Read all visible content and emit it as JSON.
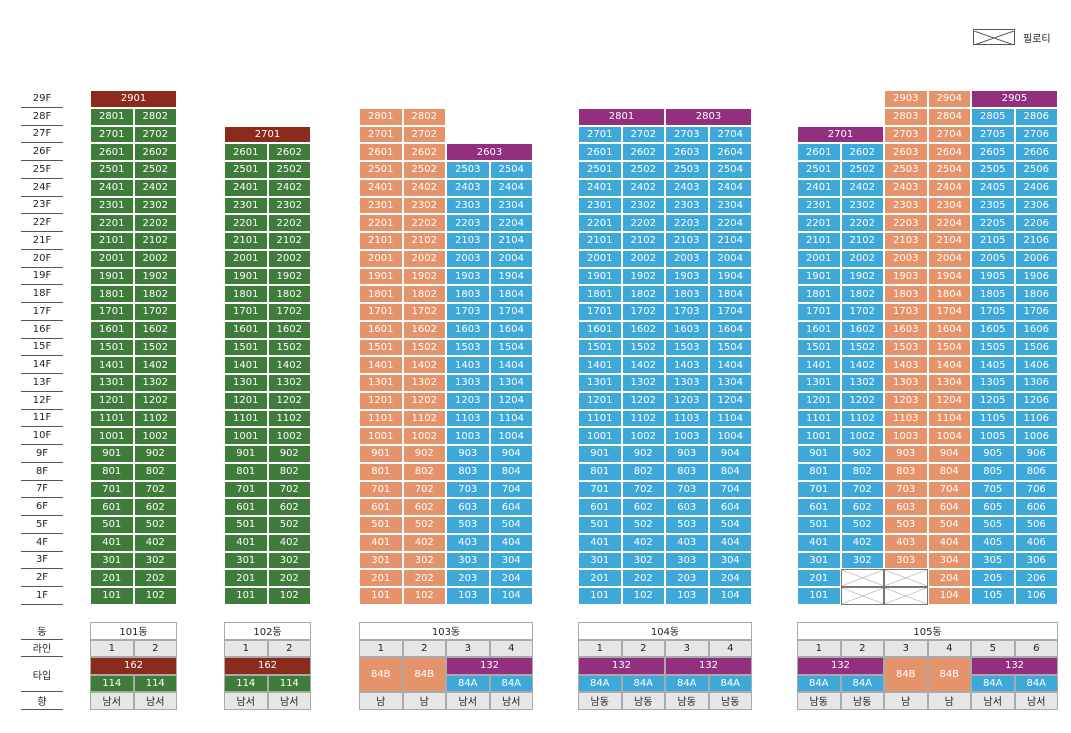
{
  "legend": {
    "label": "필로티"
  },
  "colors": {
    "dark_red": "#8b2b1c",
    "green": "#3f7c3a",
    "orange": "#e5936a",
    "blue": "#3ea9d8",
    "purple": "#922f7f",
    "gray_row": "#e6e6e6"
  },
  "floors": [
    "29F",
    "28F",
    "27F",
    "26F",
    "25F",
    "24F",
    "23F",
    "22F",
    "21F",
    "20F",
    "19F",
    "18F",
    "17F",
    "16F",
    "15F",
    "14F",
    "13F",
    "12F",
    "11F",
    "10F",
    "9F",
    "8F",
    "7F",
    "6F",
    "5F",
    "4F",
    "3F",
    "2F",
    "1F"
  ],
  "row_labels": {
    "dong": "동",
    "line": "라인",
    "type": "타입",
    "direction": "향"
  },
  "buildings": [
    {
      "name": "101동",
      "lines": [
        "1",
        "2"
      ],
      "top_floor": 29,
      "line_colors": [
        "green",
        "green"
      ],
      "merged": [
        {
          "floor": 29,
          "from": 0,
          "to": 1,
          "label": "2901",
          "color": "dark_red"
        }
      ],
      "pilotis": [],
      "type_top": [
        {
          "from": 0,
          "to": 1,
          "label": "162",
          "color": "dark_red"
        }
      ],
      "type_bottom": [
        {
          "from": 0,
          "to": 0,
          "label": "114",
          "color": "green"
        },
        {
          "from": 1,
          "to": 1,
          "label": "114",
          "color": "green"
        }
      ],
      "direction": [
        "남서",
        "남서"
      ]
    },
    {
      "name": "102동",
      "lines": [
        "1",
        "2"
      ],
      "top_floor": 27,
      "line_colors": [
        "green",
        "green"
      ],
      "merged": [
        {
          "floor": 27,
          "from": 0,
          "to": 1,
          "label": "2701",
          "color": "dark_red"
        }
      ],
      "pilotis": [],
      "type_top": [
        {
          "from": 0,
          "to": 1,
          "label": "162",
          "color": "dark_red"
        }
      ],
      "type_bottom": [
        {
          "from": 0,
          "to": 0,
          "label": "114",
          "color": "green"
        },
        {
          "from": 1,
          "to": 1,
          "label": "114",
          "color": "green"
        }
      ],
      "direction": [
        "남서",
        "남서"
      ]
    },
    {
      "name": "103동",
      "lines": [
        "1",
        "2",
        "3",
        "4"
      ],
      "top_floors": [
        28,
        28,
        26,
        25
      ],
      "line_colors": [
        "orange",
        "orange",
        "blue",
        "blue"
      ],
      "merged": [
        {
          "floor": 26,
          "from": 2,
          "to": 3,
          "label": "2603",
          "color": "purple"
        }
      ],
      "pilotis": [],
      "type_full": [
        {
          "from": 0,
          "to": 0,
          "label": "84B",
          "color": "orange"
        },
        {
          "from": 1,
          "to": 1,
          "label": "84B",
          "color": "orange"
        }
      ],
      "type_top": [
        {
          "from": 2,
          "to": 3,
          "label": "132",
          "color": "purple"
        }
      ],
      "type_bottom": [
        {
          "from": 2,
          "to": 2,
          "label": "84A",
          "color": "blue"
        },
        {
          "from": 3,
          "to": 3,
          "label": "84A",
          "color": "blue"
        }
      ],
      "direction": [
        "남",
        "남",
        "남서",
        "남서"
      ]
    },
    {
      "name": "104동",
      "lines": [
        "1",
        "2",
        "3",
        "4"
      ],
      "top_floor": 28,
      "line_colors": [
        "blue",
        "blue",
        "blue",
        "blue"
      ],
      "merged": [
        {
          "floor": 28,
          "from": 0,
          "to": 1,
          "label": "2801",
          "color": "purple"
        },
        {
          "floor": 28,
          "from": 2,
          "to": 3,
          "label": "2803",
          "color": "purple"
        }
      ],
      "pilotis": [],
      "type_top": [
        {
          "from": 0,
          "to": 1,
          "label": "132",
          "color": "purple"
        },
        {
          "from": 2,
          "to": 3,
          "label": "132",
          "color": "purple"
        }
      ],
      "type_bottom": [
        {
          "from": 0,
          "to": 0,
          "label": "84A",
          "color": "blue"
        },
        {
          "from": 1,
          "to": 1,
          "label": "84A",
          "color": "blue"
        },
        {
          "from": 2,
          "to": 2,
          "label": "84A",
          "color": "blue"
        },
        {
          "from": 3,
          "to": 3,
          "label": "84A",
          "color": "blue"
        }
      ],
      "direction": [
        "남동",
        "남동",
        "남동",
        "남동"
      ]
    },
    {
      "name": "105동",
      "lines": [
        "1",
        "2",
        "3",
        "4",
        "5",
        "6"
      ],
      "top_floors": [
        27,
        27,
        29,
        29,
        29,
        29
      ],
      "line_colors": [
        "blue",
        "blue",
        "orange",
        "orange",
        "blue",
        "blue"
      ],
      "merged": [
        {
          "floor": 27,
          "from": 0,
          "to": 1,
          "label": "2701",
          "color": "purple"
        },
        {
          "floor": 29,
          "from": 4,
          "to": 5,
          "label": "2905",
          "color": "purple"
        }
      ],
      "pilotis": [
        {
          "floor": 2,
          "line": 1
        },
        {
          "floor": 2,
          "line": 2
        },
        {
          "floor": 1,
          "line": 1
        },
        {
          "floor": 1,
          "line": 2
        }
      ],
      "type_top": [
        {
          "from": 0,
          "to": 1,
          "label": "132",
          "color": "purple"
        },
        {
          "from": 4,
          "to": 5,
          "label": "132",
          "color": "purple"
        }
      ],
      "type_full": [
        {
          "from": 2,
          "to": 2,
          "label": "84B",
          "color": "orange"
        },
        {
          "from": 3,
          "to": 3,
          "label": "84B",
          "color": "orange"
        }
      ],
      "type_bottom": [
        {
          "from": 0,
          "to": 0,
          "label": "84A",
          "color": "blue"
        },
        {
          "from": 1,
          "to": 1,
          "label": "84A",
          "color": "blue"
        },
        {
          "from": 4,
          "to": 4,
          "label": "84A",
          "color": "blue"
        },
        {
          "from": 5,
          "to": 5,
          "label": "84A",
          "color": "blue"
        }
      ],
      "direction": [
        "남동",
        "남동",
        "남",
        "남",
        "남서",
        "남서"
      ]
    }
  ]
}
